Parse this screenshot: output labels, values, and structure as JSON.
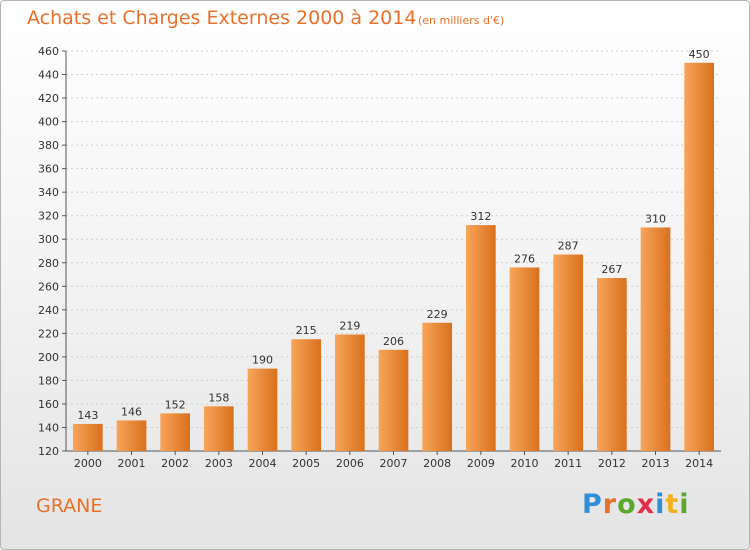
{
  "header": {
    "title": "Achats et Charges Externes 2000 à 2014",
    "unit": "(en milliers d'€)"
  },
  "footer": {
    "commune": "GRANE",
    "logo_text": "Proxiti"
  },
  "colors": {
    "accent": "#e8712a",
    "bar_light": "#f7a55a",
    "bar_dark": "#d9701c"
  },
  "chart_data": {
    "type": "bar",
    "title": "Achats et Charges Externes 2000 à 2014",
    "categories": [
      "2000",
      "2001",
      "2002",
      "2003",
      "2004",
      "2005",
      "2006",
      "2007",
      "2008",
      "2009",
      "2010",
      "2011",
      "2012",
      "2013",
      "2014"
    ],
    "values": [
      143,
      146,
      152,
      158,
      190,
      215,
      219,
      206,
      229,
      312,
      276,
      287,
      267,
      310,
      450
    ],
    "ylim": [
      120,
      460
    ],
    "yticks": [
      120,
      140,
      160,
      180,
      200,
      220,
      240,
      260,
      280,
      300,
      320,
      340,
      360,
      380,
      400,
      420,
      440,
      460
    ],
    "xlabel": "",
    "ylabel": "",
    "grid": true
  }
}
